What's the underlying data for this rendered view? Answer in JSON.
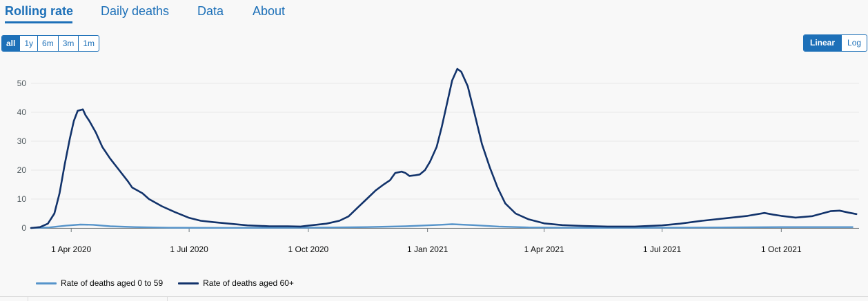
{
  "tabs": [
    {
      "label": "Rolling rate",
      "active": true
    },
    {
      "label": "Daily deaths",
      "active": false
    },
    {
      "label": "Data",
      "active": false
    },
    {
      "label": "About",
      "active": false
    }
  ],
  "range_buttons": [
    {
      "label": "all",
      "active": true
    },
    {
      "label": "1y",
      "active": false
    },
    {
      "label": "6m",
      "active": false
    },
    {
      "label": "3m",
      "active": false
    },
    {
      "label": "1m",
      "active": false
    }
  ],
  "scale_buttons": [
    {
      "label": "Linear",
      "active": true
    },
    {
      "label": "Log",
      "active": false
    }
  ],
  "colors": {
    "accent": "#1d70b8",
    "series_young": "#5694ca",
    "series_old": "#12336b",
    "grid": "#e8e8e8"
  },
  "chart_data": {
    "type": "line",
    "title": "",
    "xlabel": "",
    "ylabel": "",
    "ylim": [
      0,
      55
    ],
    "yticks": [
      0,
      10,
      20,
      30,
      40,
      50
    ],
    "xlim": [
      "2020-03-01",
      "2021-11-30"
    ],
    "xticks": [
      {
        "date": "2020-04-01",
        "label": "1 Apr 2020"
      },
      {
        "date": "2020-07-01",
        "label": "1 Jul 2020"
      },
      {
        "date": "2020-10-01",
        "label": "1 Oct 2020"
      },
      {
        "date": "2021-01-01",
        "label": "1 Jan 2021"
      },
      {
        "date": "2021-04-01",
        "label": "1 Apr 2021"
      },
      {
        "date": "2021-07-01",
        "label": "1 Jul 2021"
      },
      {
        "date": "2021-10-01",
        "label": "1 Oct 2021"
      }
    ],
    "grid": true,
    "legend_position": "bottom-left",
    "series": [
      {
        "name": "Rate of deaths aged 0 to 59",
        "color": "#5694ca",
        "points": [
          [
            "2020-03-01",
            0
          ],
          [
            "2020-03-15",
            0.2
          ],
          [
            "2020-03-28",
            0.8
          ],
          [
            "2020-04-08",
            1.2
          ],
          [
            "2020-04-18",
            1.1
          ],
          [
            "2020-05-01",
            0.6
          ],
          [
            "2020-05-20",
            0.3
          ],
          [
            "2020-06-15",
            0.1
          ],
          [
            "2020-08-01",
            0.05
          ],
          [
            "2020-10-01",
            0.1
          ],
          [
            "2020-11-15",
            0.3
          ],
          [
            "2020-12-15",
            0.6
          ],
          [
            "2021-01-10",
            1.1
          ],
          [
            "2021-01-20",
            1.3
          ],
          [
            "2021-02-05",
            1.0
          ],
          [
            "2021-02-25",
            0.5
          ],
          [
            "2021-03-20",
            0.2
          ],
          [
            "2021-05-01",
            0.05
          ],
          [
            "2021-07-01",
            0.1
          ],
          [
            "2021-08-15",
            0.2
          ],
          [
            "2021-10-01",
            0.3
          ],
          [
            "2021-11-25",
            0.3
          ]
        ]
      },
      {
        "name": "Rate of deaths aged 60+",
        "color": "#12336b",
        "points": [
          [
            "2020-03-01",
            0
          ],
          [
            "2020-03-08",
            0.3
          ],
          [
            "2020-03-14",
            1.5
          ],
          [
            "2020-03-19",
            5
          ],
          [
            "2020-03-23",
            12
          ],
          [
            "2020-03-27",
            22
          ],
          [
            "2020-03-31",
            31
          ],
          [
            "2020-04-03",
            37
          ],
          [
            "2020-04-06",
            40.5
          ],
          [
            "2020-04-10",
            41
          ],
          [
            "2020-04-12",
            39
          ],
          [
            "2020-04-15",
            37
          ],
          [
            "2020-04-20",
            33
          ],
          [
            "2020-04-25",
            28
          ],
          [
            "2020-05-01",
            24
          ],
          [
            "2020-05-08",
            20
          ],
          [
            "2020-05-15",
            16
          ],
          [
            "2020-05-18",
            14
          ],
          [
            "2020-05-22",
            13
          ],
          [
            "2020-05-26",
            12
          ],
          [
            "2020-05-31",
            10
          ],
          [
            "2020-06-10",
            7.5
          ],
          [
            "2020-06-20",
            5.5
          ],
          [
            "2020-07-01",
            3.5
          ],
          [
            "2020-07-10",
            2.5
          ],
          [
            "2020-07-20",
            2.0
          ],
          [
            "2020-08-01",
            1.5
          ],
          [
            "2020-08-15",
            0.9
          ],
          [
            "2020-09-01",
            0.6
          ],
          [
            "2020-09-15",
            0.6
          ],
          [
            "2020-09-25",
            0.5
          ],
          [
            "2020-10-01",
            0.8
          ],
          [
            "2020-10-15",
            1.5
          ],
          [
            "2020-10-25",
            2.5
          ],
          [
            "2020-11-01",
            4
          ],
          [
            "2020-11-08",
            7
          ],
          [
            "2020-11-15",
            10
          ],
          [
            "2020-11-22",
            13
          ],
          [
            "2020-11-28",
            15
          ],
          [
            "2020-12-03",
            16.5
          ],
          [
            "2020-12-07",
            19
          ],
          [
            "2020-12-12",
            19.5
          ],
          [
            "2020-12-15",
            19
          ],
          [
            "2020-12-18",
            18
          ],
          [
            "2020-12-22",
            18.2
          ],
          [
            "2020-12-26",
            18.5
          ],
          [
            "2020-12-30",
            20
          ],
          [
            "2021-01-03",
            23
          ],
          [
            "2021-01-08",
            28
          ],
          [
            "2021-01-12",
            35
          ],
          [
            "2021-01-16",
            43
          ],
          [
            "2021-01-20",
            51
          ],
          [
            "2021-01-24",
            55
          ],
          [
            "2021-01-27",
            54
          ],
          [
            "2021-02-01",
            49
          ],
          [
            "2021-02-06",
            40
          ],
          [
            "2021-02-12",
            29
          ],
          [
            "2021-02-18",
            21
          ],
          [
            "2021-02-24",
            14
          ],
          [
            "2021-03-02",
            8.5
          ],
          [
            "2021-03-10",
            5
          ],
          [
            "2021-03-20",
            3
          ],
          [
            "2021-04-01",
            1.6
          ],
          [
            "2021-04-15",
            1.0
          ],
          [
            "2021-05-01",
            0.7
          ],
          [
            "2021-05-20",
            0.5
          ],
          [
            "2021-06-10",
            0.5
          ],
          [
            "2021-07-01",
            0.9
          ],
          [
            "2021-07-15",
            1.5
          ],
          [
            "2021-08-01",
            2.5
          ],
          [
            "2021-08-20",
            3.4
          ],
          [
            "2021-09-05",
            4.2
          ],
          [
            "2021-09-18",
            5.2
          ],
          [
            "2021-09-25",
            4.6
          ],
          [
            "2021-10-01",
            4.2
          ],
          [
            "2021-10-12",
            3.6
          ],
          [
            "2021-10-25",
            4.1
          ],
          [
            "2021-11-08",
            5.8
          ],
          [
            "2021-11-15",
            6.0
          ],
          [
            "2021-11-22",
            5.3
          ],
          [
            "2021-11-28",
            4.8
          ]
        ]
      }
    ]
  }
}
